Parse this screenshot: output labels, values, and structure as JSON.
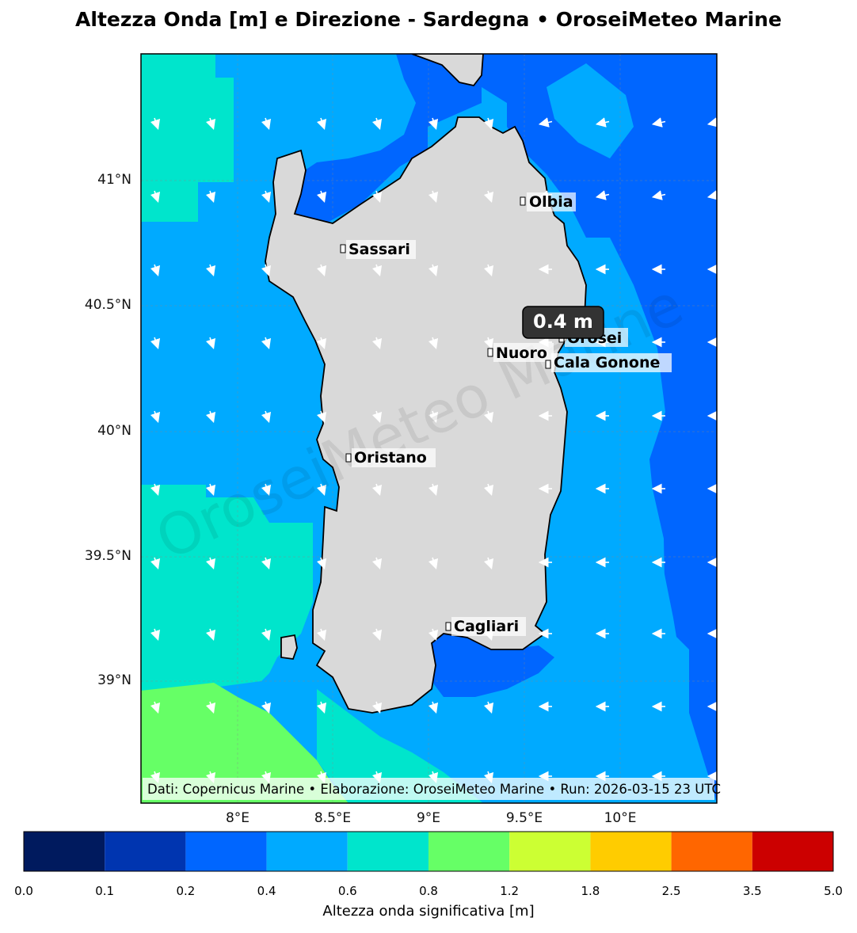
{
  "title": "Altezza Onda [m] e Direzione - Sardegna • OroseiMeteo Marine",
  "axes": {
    "y_ticks": [
      "41°N",
      "40.5°N",
      "40°N",
      "39.5°N",
      "39°N"
    ],
    "x_ticks": [
      "8°E",
      "8.5°E",
      "9°E",
      "9.5°E",
      "10°E"
    ]
  },
  "cities": [
    "Olbia",
    "Sassari",
    "Orosei",
    "Nuoro",
    "Cala Gonone",
    "Oristano",
    "Cagliari"
  ],
  "highlight": "0.4 m",
  "watermark": "OroseiMeteo Marine",
  "footer": "Dati: Copernicus Marine • Elaborazione: OroseiMeteo Marine • Run: 2026-03-15 23 UTC",
  "colorbar": {
    "label": "Altezza onda significativa [m]",
    "ticks": [
      "0.0",
      "0.1",
      "0.2",
      "0.4",
      "0.6",
      "0.8",
      "1.2",
      "1.8",
      "2.5",
      "3.5",
      "5.0"
    ],
    "colors": [
      "#001a5e",
      "#0035b0",
      "#0066ff",
      "#00aaff",
      "#00e5cc",
      "#66ff66",
      "#ccff33",
      "#ffcc00",
      "#ff6600",
      "#cc0000"
    ]
  },
  "colors": {
    "land": "#d9d9d9",
    "land_outline": "#000000"
  }
}
